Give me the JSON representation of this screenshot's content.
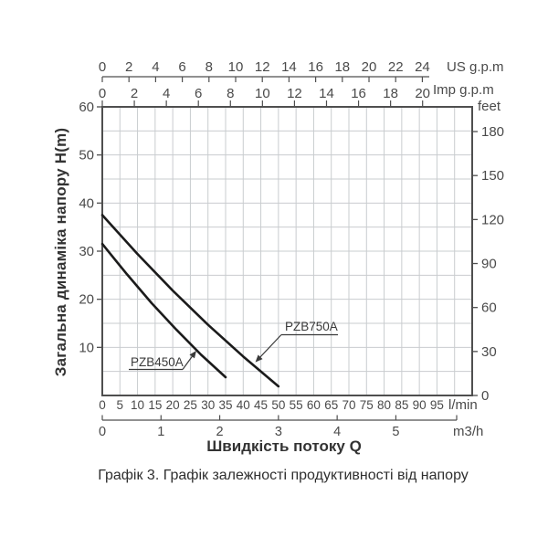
{
  "page": {
    "caption": "Графік 3. Графік залежності продуктивності від напору"
  },
  "chart_data": {
    "type": "line",
    "title": "",
    "xlabel": "Швидкість потоку Q",
    "ylabel": "Загальна динаміка напору H(m)",
    "xlim_lmin": [
      0,
      105
    ],
    "ylim_m": [
      0,
      60
    ],
    "grid": true,
    "grid_step_lmin": 5,
    "grid_step_m": 5,
    "x_axes": [
      {
        "id": "us_gpm",
        "label": "US g.p.m",
        "lmin_per_unit": 3.7854,
        "ticks": [
          0,
          2,
          4,
          6,
          8,
          10,
          12,
          14,
          16,
          18,
          20,
          22,
          24
        ]
      },
      {
        "id": "imp_gpm",
        "label": "Imp g.p.m",
        "lmin_per_unit": 4.5461,
        "ticks": [
          0,
          2,
          4,
          6,
          8,
          10,
          12,
          14,
          16,
          18,
          20
        ]
      },
      {
        "id": "lmin",
        "label": "l/min",
        "lmin_per_unit": 1,
        "ticks": [
          0,
          5,
          10,
          15,
          20,
          25,
          30,
          35,
          40,
          45,
          50,
          55,
          60,
          65,
          70,
          75,
          80,
          85,
          90,
          95
        ]
      },
      {
        "id": "m3h",
        "label": "m3/h",
        "lmin_per_unit": 16.6667,
        "ticks": [
          0,
          1,
          2,
          3,
          4,
          5
        ]
      }
    ],
    "y_axes": [
      {
        "id": "meters",
        "label": "H(m)",
        "m_per_unit": 1,
        "ticks": [
          10,
          20,
          30,
          40,
          50,
          60
        ]
      },
      {
        "id": "feet",
        "label": "feet",
        "m_per_unit": 0.3048,
        "ticks": [
          0,
          30,
          60,
          90,
          120,
          150,
          180
        ]
      }
    ],
    "series": [
      {
        "name": "PZB450A",
        "points_lmin_m": [
          [
            0,
            31.5
          ],
          [
            7,
            25.2
          ],
          [
            14,
            19.2
          ],
          [
            21,
            13.7
          ],
          [
            28,
            8.5
          ],
          [
            35,
            3.8
          ]
        ]
      },
      {
        "name": "PZB750A",
        "points_lmin_m": [
          [
            0,
            37.5
          ],
          [
            10,
            29.4
          ],
          [
            20,
            21.8
          ],
          [
            30,
            14.7
          ],
          [
            40,
            8.1
          ],
          [
            50,
            1.9
          ]
        ]
      }
    ],
    "annotations": [
      {
        "text": "PZB450A",
        "series": "PZB450A"
      },
      {
        "text": "PZB750A",
        "series": "PZB750A"
      }
    ],
    "legend_position": "none",
    "colors": {
      "grid": "#c9cccf",
      "axis": "#4f4f4f",
      "text": "#4a4a4a",
      "curve": "#1b1b1b",
      "annotation_text": "#3a3a3a"
    }
  }
}
